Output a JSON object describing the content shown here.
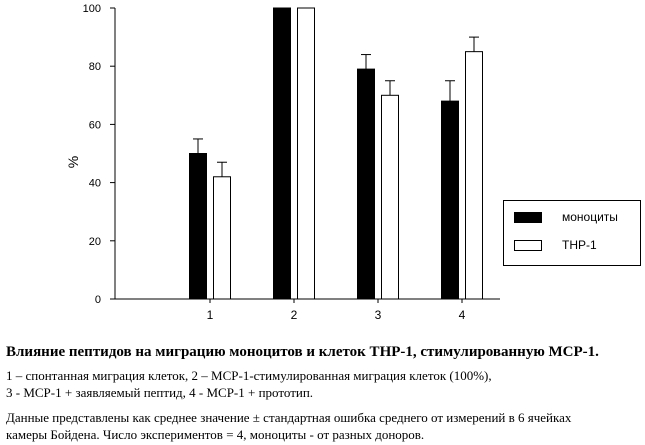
{
  "chart_data": {
    "type": "bar",
    "categories": [
      "1",
      "2",
      "3",
      "4"
    ],
    "series": [
      {
        "name": "моноциты",
        "values": [
          50,
          100,
          79,
          68
        ],
        "errors": [
          5,
          0,
          5,
          7
        ],
        "color": "#000000"
      },
      {
        "name": "THP-1",
        "values": [
          42,
          100,
          70,
          85
        ],
        "errors": [
          5,
          0,
          5,
          5
        ],
        "color": "#ffffff"
      }
    ],
    "ylabel": "%",
    "ylim": [
      0,
      100
    ],
    "yticks": [
      "0",
      "20",
      "40",
      "60",
      "80",
      "100"
    ],
    "legend": "right",
    "grid": false
  },
  "caption": {
    "title": "Влияние пептидов на миграцию моноцитов и клеток THP-1, стимулированную MCP-1.",
    "line1": "1 – спонтанная миграция клеток, 2 – MCP-1-стимулированная миграция клеток (100%),",
    "line2": "3 -  MCP-1 + заявляемый пептид, 4 -  MCP-1 + прототип.",
    "line3": "Данные представлены как среднее значение ± стандартная ошибка среднего от измерений в 6 ячейках",
    "line4": "камеры Бойдена. Число экспериментов = 4, моноциты - от разных доноров."
  }
}
